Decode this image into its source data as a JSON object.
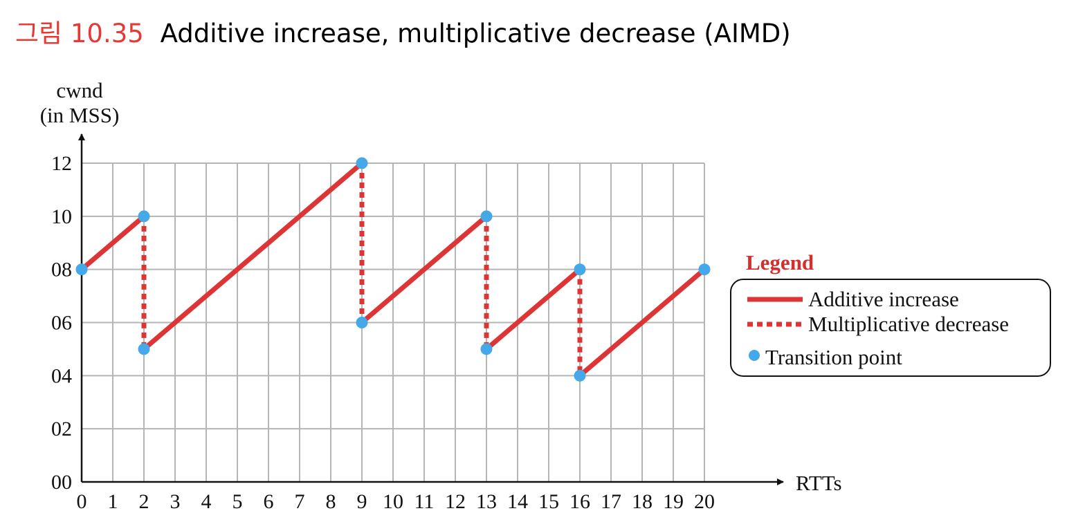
{
  "figure": {
    "label": "그림",
    "number": "10.35",
    "title": "Additive increase, multiplicative decrease (AIMD)"
  },
  "colors": {
    "line": "#dd3535",
    "point": "#45a8e8",
    "caption_accent": "#e53935",
    "grid": "#b5b5b5"
  },
  "chart_data": {
    "type": "line",
    "title": "Additive increase, multiplicative decrease (AIMD)",
    "xlabel": "RTTs",
    "ylabel": "cwnd\n(in MSS)",
    "ylabel_lines": [
      "cwnd",
      "(in MSS)"
    ],
    "xlim": [
      0,
      20
    ],
    "ylim": [
      0,
      12
    ],
    "grid": true,
    "x_ticks": [
      0,
      1,
      2,
      3,
      4,
      5,
      6,
      7,
      8,
      9,
      10,
      11,
      12,
      13,
      14,
      15,
      16,
      17,
      18,
      19,
      20
    ],
    "y_ticks": [
      0,
      2,
      4,
      6,
      8,
      10,
      12
    ],
    "y_tick_labels": [
      "00",
      "02",
      "04",
      "06",
      "08",
      "10",
      "12"
    ],
    "additive_increase": [
      {
        "x": [
          0,
          2
        ],
        "y": [
          8,
          10
        ]
      },
      {
        "x": [
          2,
          9
        ],
        "y": [
          5,
          12
        ]
      },
      {
        "x": [
          9,
          13
        ],
        "y": [
          6,
          10
        ]
      },
      {
        "x": [
          13,
          16
        ],
        "y": [
          5,
          8
        ]
      },
      {
        "x": [
          16,
          20
        ],
        "y": [
          4,
          8
        ]
      }
    ],
    "multiplicative_decrease": [
      {
        "x": [
          2,
          2
        ],
        "y": [
          10,
          5
        ]
      },
      {
        "x": [
          9,
          9
        ],
        "y": [
          12,
          6
        ]
      },
      {
        "x": [
          13,
          13
        ],
        "y": [
          10,
          5
        ]
      },
      {
        "x": [
          16,
          16
        ],
        "y": [
          8,
          4
        ]
      }
    ],
    "transition_points": [
      {
        "x": 0,
        "y": 8
      },
      {
        "x": 2,
        "y": 10
      },
      {
        "x": 2,
        "y": 5
      },
      {
        "x": 9,
        "y": 12
      },
      {
        "x": 9,
        "y": 6
      },
      {
        "x": 13,
        "y": 10
      },
      {
        "x": 13,
        "y": 5
      },
      {
        "x": 16,
        "y": 8
      },
      {
        "x": 16,
        "y": 4
      },
      {
        "x": 20,
        "y": 8
      }
    ],
    "legend": {
      "title": "Legend",
      "position": "right",
      "entries": [
        {
          "label": "Additive increase",
          "style": "solid-line"
        },
        {
          "label": "Multiplicative decrease",
          "style": "dotted-line"
        },
        {
          "label": "Transition point",
          "style": "dot"
        }
      ]
    }
  }
}
